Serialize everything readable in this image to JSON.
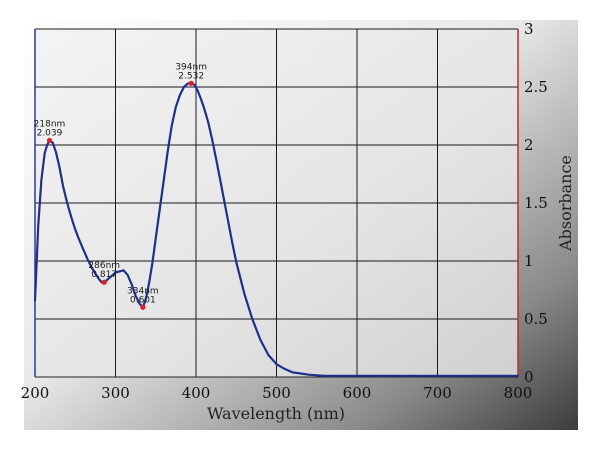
{
  "chart_data": {
    "type": "line",
    "xlabel": "Wavelength (nm)",
    "ylabel": "Absorbance",
    "xlim": [
      200,
      800
    ],
    "ylim": [
      0,
      3
    ],
    "x_ticks": [
      200,
      300,
      400,
      500,
      600,
      700,
      800
    ],
    "x_tick_labels": [
      "200",
      "300",
      "400",
      "500",
      "600",
      "700",
      "800"
    ],
    "y_ticks": [
      0,
      0.5,
      1,
      1.5,
      2,
      2.5,
      3
    ],
    "y_tick_labels": [
      "0",
      "0.5",
      "1",
      "1.5",
      "2",
      "2.5",
      "3"
    ],
    "grid": true,
    "line_color": "#1f2f8a",
    "marker_color": "#e02020",
    "series": [
      {
        "x": [
          200,
          204,
          208,
          212,
          215,
          218,
          222,
          226,
          230,
          235,
          240,
          245,
          250,
          255,
          260,
          265,
          270,
          275,
          280,
          283,
          286,
          290,
          295,
          300,
          305,
          310,
          315,
          320,
          325,
          330,
          334,
          338,
          342,
          346,
          350,
          355,
          360,
          365,
          370,
          375,
          380,
          385,
          390,
          394,
          398,
          402,
          406,
          410,
          415,
          420,
          425,
          430,
          435,
          440,
          445,
          450,
          460,
          470,
          480,
          490,
          500,
          510,
          520,
          530,
          540,
          550,
          560,
          570,
          580,
          600,
          650,
          700,
          750,
          800
        ],
        "y": [
          0.66,
          1.3,
          1.7,
          1.93,
          2.0,
          2.039,
          2.02,
          1.94,
          1.82,
          1.64,
          1.5,
          1.38,
          1.27,
          1.18,
          1.1,
          1.02,
          0.95,
          0.89,
          0.84,
          0.815,
          0.817,
          0.84,
          0.87,
          0.9,
          0.91,
          0.92,
          0.88,
          0.8,
          0.7,
          0.63,
          0.601,
          0.68,
          0.82,
          0.99,
          1.2,
          1.45,
          1.7,
          1.95,
          2.17,
          2.33,
          2.43,
          2.5,
          2.53,
          2.532,
          2.52,
          2.47,
          2.4,
          2.32,
          2.2,
          2.05,
          1.88,
          1.7,
          1.52,
          1.34,
          1.16,
          0.99,
          0.72,
          0.5,
          0.32,
          0.19,
          0.11,
          0.07,
          0.04,
          0.03,
          0.02,
          0.015,
          0.01,
          0.01,
          0.01,
          0.01,
          0.01,
          0.01,
          0.01,
          0.01
        ]
      }
    ],
    "annotations": [
      {
        "x": 218,
        "y": 2.039,
        "label_nm": "218nm",
        "label_value": "2.039"
      },
      {
        "x": 286,
        "y": 0.817,
        "label_nm": "286nm",
        "label_value": "0.817"
      },
      {
        "x": 334,
        "y": 0.601,
        "label_nm": "334nm",
        "label_value": "0.601"
      },
      {
        "x": 394,
        "y": 2.532,
        "label_nm": "394nm",
        "label_value": "2.532"
      }
    ]
  }
}
